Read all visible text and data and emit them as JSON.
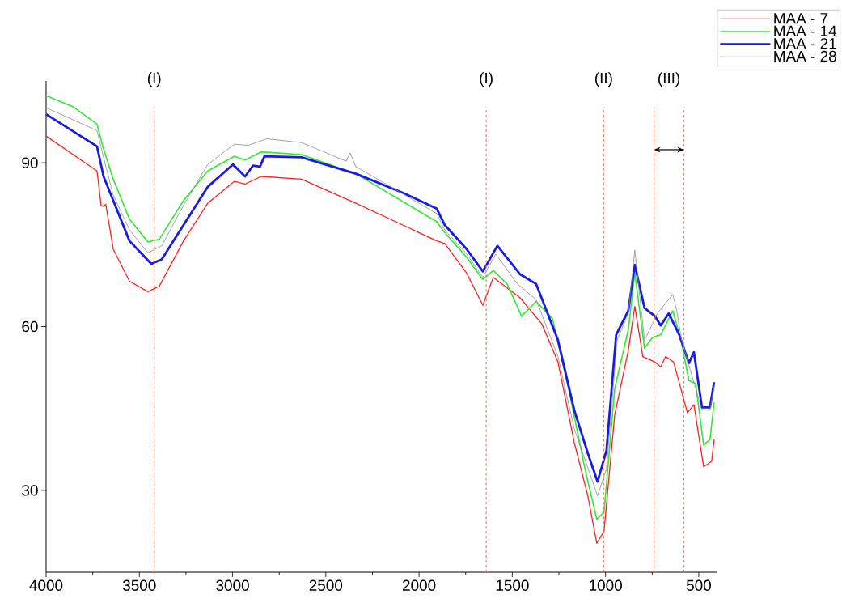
{
  "chart_data": {
    "type": "line",
    "xlim": [
      4000,
      400
    ],
    "ylim": [
      15,
      105
    ],
    "xticks": [
      4000,
      3500,
      3000,
      2500,
      2000,
      1500,
      1000,
      500
    ],
    "yticks": [
      30,
      60,
      90
    ],
    "legend": "top right",
    "series": [
      {
        "name": "MAA - 7",
        "color": "#ff2020",
        "x": [
          4000,
          3727,
          3705,
          3690,
          3680,
          3640,
          3553,
          3454,
          3393,
          3263,
          3133,
          2990,
          2933,
          2847,
          2630,
          2339,
          1905,
          1862,
          1745,
          1658,
          1602,
          1459,
          1342,
          1255,
          1168,
          1095,
          1047,
          1008,
          951,
          878,
          843,
          800,
          735,
          704,
          678,
          635,
          561,
          526,
          474,
          431,
          418
        ],
        "values": [
          94.9,
          88.5,
          82.2,
          82.0,
          82.4,
          74.2,
          68.3,
          66.4,
          67.4,
          75.7,
          82.6,
          86.6,
          86.1,
          87.5,
          87.0,
          82.6,
          75.7,
          75.2,
          69.8,
          63.9,
          69.0,
          65.3,
          60.5,
          53.5,
          38.8,
          29.0,
          20.3,
          22.5,
          43.8,
          55.6,
          63.7,
          54.5,
          53.5,
          52.6,
          54.5,
          53.5,
          44.2,
          45.7,
          34.3,
          35.3,
          39.3
        ]
      },
      {
        "name": "MAA - 14",
        "color": "#33e833",
        "x": [
          4000,
          3857,
          3727,
          3696,
          3640,
          3553,
          3454,
          3393,
          3263,
          3133,
          2990,
          2933,
          2847,
          2630,
          2339,
          1905,
          1862,
          1745,
          1658,
          1602,
          1528,
          1450,
          1372,
          1285,
          1198,
          1110,
          1047,
          1008,
          951,
          878,
          843,
          791,
          748,
          704,
          639,
          592,
          553,
          517,
          474,
          440,
          418
        ],
        "values": [
          102.3,
          100.3,
          97.1,
          93.0,
          87.0,
          79.7,
          75.5,
          76.0,
          83.1,
          88.5,
          91.2,
          90.5,
          92.0,
          91.5,
          88.0,
          79.2,
          77.2,
          72.7,
          68.6,
          70.3,
          67.8,
          61.9,
          64.6,
          61.5,
          48.6,
          33.9,
          24.7,
          26.0,
          48.6,
          59.4,
          69.8,
          56.0,
          58.0,
          58.5,
          62.9,
          57.0,
          50.1,
          49.6,
          38.3,
          39.3,
          46.1
        ]
      },
      {
        "name": "MAA - 21",
        "color": "#1a1ae6",
        "x": [
          4000,
          3727,
          3692,
          3640,
          3553,
          3436,
          3380,
          3263,
          3133,
          2998,
          2933,
          2890,
          2853,
          2829,
          2630,
          2339,
          2079,
          1905,
          1862,
          1745,
          1658,
          1580,
          1459,
          1372,
          1255,
          1168,
          1095,
          1043,
          995,
          943,
          878,
          843,
          791,
          735,
          704,
          661,
          605,
          553,
          526,
          483,
          440,
          418
        ],
        "values": [
          98.9,
          93.0,
          87.5,
          83.1,
          75.7,
          71.5,
          72.3,
          78.6,
          85.6,
          89.7,
          87.5,
          89.5,
          89.3,
          91.2,
          91.0,
          88.0,
          84.4,
          81.6,
          78.6,
          74.2,
          70.1,
          74.8,
          69.6,
          67.8,
          57.5,
          44.7,
          36.8,
          31.6,
          37.3,
          58.5,
          62.9,
          71.3,
          63.4,
          61.9,
          60.2,
          62.4,
          58.5,
          53.3,
          55.3,
          45.2,
          45.2,
          49.8
        ]
      },
      {
        "name": "MAA - 28",
        "color": "#8c8c8c",
        "x": [
          4000,
          3727,
          3692,
          3640,
          3553,
          3454,
          3380,
          3263,
          3133,
          2990,
          2916,
          2816,
          2630,
          2391,
          2370,
          2339,
          1905,
          1862,
          1745,
          1658,
          1589,
          1472,
          1372,
          1255,
          1168,
          1043,
          995,
          938,
          878,
          843,
          791,
          722,
          639,
          618,
          592,
          553,
          483,
          440,
          418
        ],
        "values": [
          100.1,
          95.9,
          91.0,
          84.1,
          77.7,
          73.5,
          74.8,
          82.2,
          89.7,
          93.4,
          93.2,
          94.4,
          93.7,
          90.3,
          91.8,
          89.3,
          80.7,
          77.7,
          73.3,
          69.0,
          73.3,
          67.8,
          64.9,
          54.5,
          41.3,
          29.0,
          33.9,
          57.5,
          62.4,
          74.0,
          57.5,
          62.4,
          65.9,
          62.9,
          57.5,
          52.9,
          44.7,
          44.7,
          49.0
        ]
      }
    ],
    "ref_lines": [
      {
        "axis": "x",
        "value": 3420,
        "label": "(I)",
        "color": "#f08060",
        "line_style": "dashed"
      },
      {
        "axis": "x",
        "value": 1640,
        "label": "(I)",
        "color": "#f08060",
        "line_style": "dashed"
      },
      {
        "axis": "x",
        "value": 1010,
        "label": "(II)",
        "color": "#f08060",
        "line_style": "dashed"
      },
      {
        "axis": "x",
        "value": 740,
        "color": "#f08060",
        "line_style": "dashed"
      },
      {
        "axis": "x",
        "value": 580,
        "color": "#f08060",
        "line_style": "dashed"
      }
    ],
    "annotations": [
      "(III)"
    ]
  }
}
